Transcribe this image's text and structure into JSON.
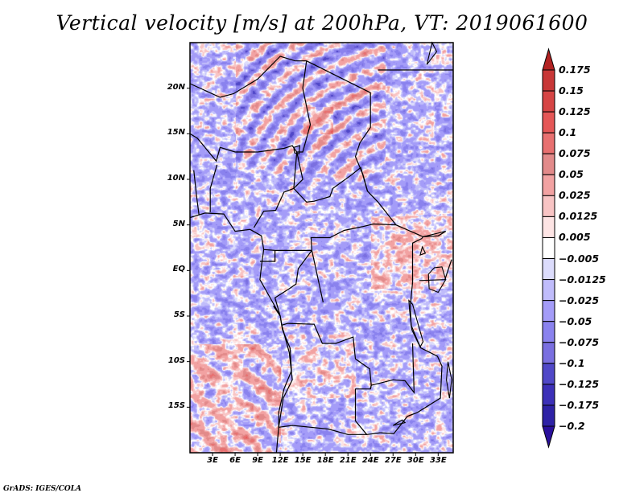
{
  "chart_data": {
    "type": "heatmap",
    "title": "Vertical velocity [m/s] at 200hPa, VT: 2019061600",
    "variable": "Vertical velocity",
    "units": "m/s",
    "level": "200hPa",
    "valid_time": "2019061600",
    "xlabel": "",
    "ylabel": "",
    "xlim_deg_east": [
      0,
      35
    ],
    "ylim_deg_north": [
      -20,
      25
    ],
    "x_ticks": [
      {
        "value": 3,
        "label": "3E"
      },
      {
        "value": 6,
        "label": "6E"
      },
      {
        "value": 9,
        "label": "9E"
      },
      {
        "value": 12,
        "label": "12E"
      },
      {
        "value": 15,
        "label": "15E"
      },
      {
        "value": 18,
        "label": "18E"
      },
      {
        "value": 21,
        "label": "21E"
      },
      {
        "value": 24,
        "label": "24E"
      },
      {
        "value": 27,
        "label": "27E"
      },
      {
        "value": 30,
        "label": "30E"
      },
      {
        "value": 33,
        "label": "33E"
      }
    ],
    "y_ticks": [
      {
        "value": 20,
        "label": "20N"
      },
      {
        "value": 15,
        "label": "15N"
      },
      {
        "value": 10,
        "label": "10N"
      },
      {
        "value": 5,
        "label": "5N"
      },
      {
        "value": 0,
        "label": "EQ"
      },
      {
        "value": -5,
        "label": "5S"
      },
      {
        "value": -10,
        "label": "10S"
      },
      {
        "value": -15,
        "label": "15S"
      }
    ],
    "colorbar": {
      "placement": "right",
      "extend": "both",
      "levels": [
        0.175,
        0.15,
        0.125,
        0.1,
        0.075,
        0.05,
        0.025,
        0.0125,
        0.005,
        -0.005,
        -0.0125,
        -0.025,
        -0.05,
        -0.075,
        -0.1,
        -0.125,
        -0.175,
        -0.2
      ],
      "labels": [
        "0.175",
        "0.15",
        "0.125",
        "0.1",
        "0.075",
        "0.05",
        "0.025",
        "0.0125",
        "0.005",
        "−0.005",
        "−0.0125",
        "−0.025",
        "−0.05",
        "−0.075",
        "−0.1",
        "−0.125",
        "−0.175",
        "−0.2"
      ],
      "colors": [
        "#b22222",
        "#c83737",
        "#d64545",
        "#e55757",
        "#e87070",
        "#e28a8a",
        "#f2a2a2",
        "#f8c4c4",
        "#fde4e4",
        "#ffffff",
        "#dcdcfc",
        "#c0bcfb",
        "#a49cf8",
        "#8a82ee",
        "#7a6fe0",
        "#5048c8",
        "#3c30b8",
        "#2e22a6",
        "#2a1aa0"
      ],
      "over_color": "#b22222",
      "under_color": "#2a109c"
    },
    "region_summary": {
      "northern_sahel": "banded alternating positive/negative arcs, strongest positive up to ~0.15",
      "equatorial_east": "scattered positive cells up to ~0.15",
      "southern_atlantic": "predominantly weak positive values",
      "general": "mostly weak negative values (-0.005 to -0.05)"
    }
  },
  "footer": {
    "credit": "GrADS: IGES/COLA"
  }
}
